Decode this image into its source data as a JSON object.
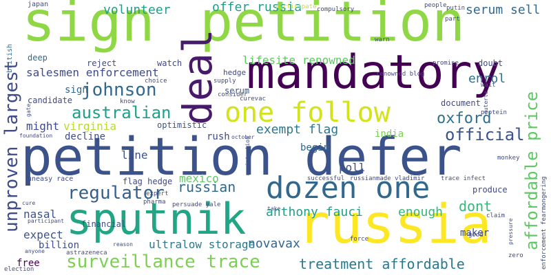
{
  "words": [
    {
      "text": "sign",
      "color": "#8fd744",
      "vertical": false
    },
    {
      "text": "petition",
      "color": "#8fd744",
      "vertical": false
    },
    {
      "text": "mandatory",
      "color": "#440154",
      "vertical": false
    },
    {
      "text": "petition defer",
      "color": "#3b528b",
      "vertical": false
    },
    {
      "text": "russia",
      "color": "#fde725",
      "vertical": false
    },
    {
      "text": "sputnik",
      "color": "#21a585",
      "vertical": false
    },
    {
      "text": "deal",
      "color": "#481a6c",
      "vertical": true
    },
    {
      "text": "dozen one",
      "color": "#31688e",
      "vertical": false
    },
    {
      "text": "one follow",
      "color": "#d2e21b",
      "vertical": false
    },
    {
      "text": "surveillance trace",
      "color": "#7ad151",
      "vertical": false
    },
    {
      "text": "treatment affordable",
      "color": "#2a788e",
      "vertical": false
    },
    {
      "text": "australian",
      "color": "#1f9e89",
      "vertical": false
    },
    {
      "text": "johnson",
      "color": "#31688e",
      "vertical": false
    },
    {
      "text": "regulator",
      "color": "#35608d",
      "vertical": false
    },
    {
      "text": "unproven largest",
      "color": "#3e4a89",
      "vertical": true
    },
    {
      "text": "affordable price",
      "color": "#5ec962",
      "vertical": true
    },
    {
      "text": "oxford",
      "color": "#2c728e",
      "vertical": false
    },
    {
      "text": "official",
      "color": "#3b528b",
      "vertical": false
    },
    {
      "text": "exempt flag",
      "color": "#2a788e",
      "vertical": false
    },
    {
      "text": "offer russia",
      "color": "#1f9e89",
      "vertical": false
    },
    {
      "text": "volunteer",
      "color": "#1f9e89",
      "vertical": false
    },
    {
      "text": "serum sell",
      "color": "#31688e",
      "vertical": false
    },
    {
      "text": "lifesite renowned",
      "color": "#5ec962",
      "vertical": false
    },
    {
      "text": "enrol",
      "color": "#2c728e",
      "vertical": false
    },
    {
      "text": "salesmen enforcement",
      "color": "#3e4a89",
      "vertical": false
    },
    {
      "text": "virginia",
      "color": "#b5de2b",
      "vertical": false
    },
    {
      "text": "might",
      "color": "#3e4a89",
      "vertical": false
    },
    {
      "text": "russian",
      "color": "#31688e",
      "vertical": false
    },
    {
      "text": "mexico",
      "color": "#5ec962",
      "vertical": false
    },
    {
      "text": "anthony fauci",
      "color": "#1f9e89",
      "vertical": false
    },
    {
      "text": "enough",
      "color": "#35b779",
      "vertical": false
    },
    {
      "text": "dont",
      "color": "#35b779",
      "vertical": false
    },
    {
      "text": "novavax",
      "color": "#31688e",
      "vertical": false
    },
    {
      "text": "ultralow storage",
      "color": "#2a788e",
      "vertical": false
    },
    {
      "text": "nasal",
      "color": "#3b528b",
      "vertical": false
    },
    {
      "text": "expect",
      "color": "#3b528b",
      "vertical": false
    },
    {
      "text": "billion",
      "color": "#3e4a89",
      "vertical": false
    },
    {
      "text": "free",
      "color": "#440154",
      "vertical": false
    },
    {
      "text": "india",
      "color": "#7ad151",
      "vertical": false
    },
    {
      "text": "poll",
      "color": "#3b528b",
      "vertical": false
    },
    {
      "text": "begin",
      "color": "#31688e",
      "vertical": false
    },
    {
      "text": "line",
      "color": "#3b528b",
      "vertical": false
    },
    {
      "text": "document",
      "color": "#3e4a89",
      "vertical": false
    },
    {
      "text": "decline",
      "color": "#3e4a89",
      "vertical": false
    },
    {
      "text": "optimistic",
      "color": "#3b528b",
      "vertical": false
    },
    {
      "text": "rush",
      "color": "#3e4a89",
      "vertical": false
    },
    {
      "text": "watch",
      "color": "#3e4a89",
      "vertical": false
    },
    {
      "text": "sign",
      "color": "#31688e",
      "vertical": false
    },
    {
      "text": "candidate",
      "color": "#3e4a89",
      "vertical": false
    },
    {
      "text": "deep",
      "color": "#31688e",
      "vertical": false
    },
    {
      "text": "reject",
      "color": "#3e4a89",
      "vertical": false
    },
    {
      "text": "serum",
      "color": "#3b528b",
      "vertical": false
    },
    {
      "text": "hedge",
      "color": "#3e4a89",
      "vertical": false
    },
    {
      "text": "doubt",
      "color": "#3e4a89",
      "vertical": false
    },
    {
      "text": "produce",
      "color": "#3e4a89",
      "vertical": false
    },
    {
      "text": "maker",
      "color": "#3e4a89",
      "vertical": false
    },
    {
      "text": "financial",
      "color": "#3e4a89",
      "vertical": false
    },
    {
      "text": "flag hedge",
      "color": "#3e4a89",
      "vertical": false
    },
    {
      "text": "uneasy race",
      "color": "#3e4a89",
      "vertical": false
    },
    {
      "text": "japan",
      "color": "#3e4a89",
      "vertical": false
    },
    {
      "text": "british",
      "color": "#31688e",
      "vertical": true
    },
    {
      "text": "people",
      "color": "#3e4a89",
      "vertical": false
    },
    {
      "text": "putin",
      "color": "#3e4a89",
      "vertical": false
    },
    {
      "text": "participate",
      "color": "#d2e21b",
      "vertical": false
    },
    {
      "text": "compulsory",
      "color": "#3e4a89",
      "vertical": false
    },
    {
      "text": "part",
      "color": "#3e4a89",
      "vertical": false
    },
    {
      "text": "warn",
      "color": "#3e4a89",
      "vertical": false
    },
    {
      "text": "renowned blog",
      "color": "#3e4a89",
      "vertical": false
    },
    {
      "text": "promise",
      "color": "#3e4a89",
      "vertical": false
    },
    {
      "text": "wait",
      "color": "#3e4a89",
      "vertical": false
    },
    {
      "text": "protein",
      "color": "#3e4a89",
      "vertical": false
    },
    {
      "text": "duterte",
      "color": "#3e4a89",
      "vertical": true
    },
    {
      "text": "monkey",
      "color": "#3e4a89",
      "vertical": false
    },
    {
      "text": "supply",
      "color": "#3e4a89",
      "vertical": false
    },
    {
      "text": "consider",
      "color": "#3e4a89",
      "vertical": false
    },
    {
      "text": "choice",
      "color": "#3e4a89",
      "vertical": false
    },
    {
      "text": "know",
      "color": "#3e4a89",
      "vertical": false
    },
    {
      "text": "curevac",
      "color": "#3e4a89",
      "vertical": false
    },
    {
      "text": "gate",
      "color": "#3e4a89",
      "vertical": true
    },
    {
      "text": "foundation",
      "color": "#3e4a89",
      "vertical": false
    },
    {
      "text": "october",
      "color": "#3e4a89",
      "vertical": false
    },
    {
      "text": "registration",
      "color": "#3e4a89",
      "vertical": true
    },
    {
      "text": "successful",
      "color": "#3e4a89",
      "vertical": false
    },
    {
      "text": "russianmade vladimir",
      "color": "#3e4a89",
      "vertical": false
    },
    {
      "text": "trace infect",
      "color": "#3e4a89",
      "vertical": false
    },
    {
      "text": "expert",
      "color": "#3e4a89",
      "vertical": false
    },
    {
      "text": "pharma",
      "color": "#3e4a89",
      "vertical": false
    },
    {
      "text": "persuade yale",
      "color": "#3e4a89",
      "vertical": false
    },
    {
      "text": "cure",
      "color": "#3e4a89",
      "vertical": false
    },
    {
      "text": "participant",
      "color": "#3e4a89",
      "vertical": false
    },
    {
      "text": "take",
      "color": "#3e4a89",
      "vertical": false
    },
    {
      "text": "force",
      "color": "#3e4a89",
      "vertical": false
    },
    {
      "text": "claim",
      "color": "#3e4a89",
      "vertical": false
    },
    {
      "text": "good",
      "color": "#3e4a89",
      "vertical": false
    },
    {
      "text": "pressure",
      "color": "#3e4a89",
      "vertical": true
    },
    {
      "text": "zero",
      "color": "#3e4a89",
      "vertical": false
    },
    {
      "text": "enforcement fearmongering",
      "color": "#3e4a89",
      "vertical": true
    },
    {
      "text": "reason",
      "color": "#3e4a89",
      "vertical": false
    },
    {
      "text": "anyone",
      "color": "#3e4a89",
      "vertical": false
    },
    {
      "text": "astrazeneca",
      "color": "#3e4a89",
      "vertical": false
    },
    {
      "text": "election",
      "color": "#3e4a89",
      "vertical": false
    }
  ]
}
